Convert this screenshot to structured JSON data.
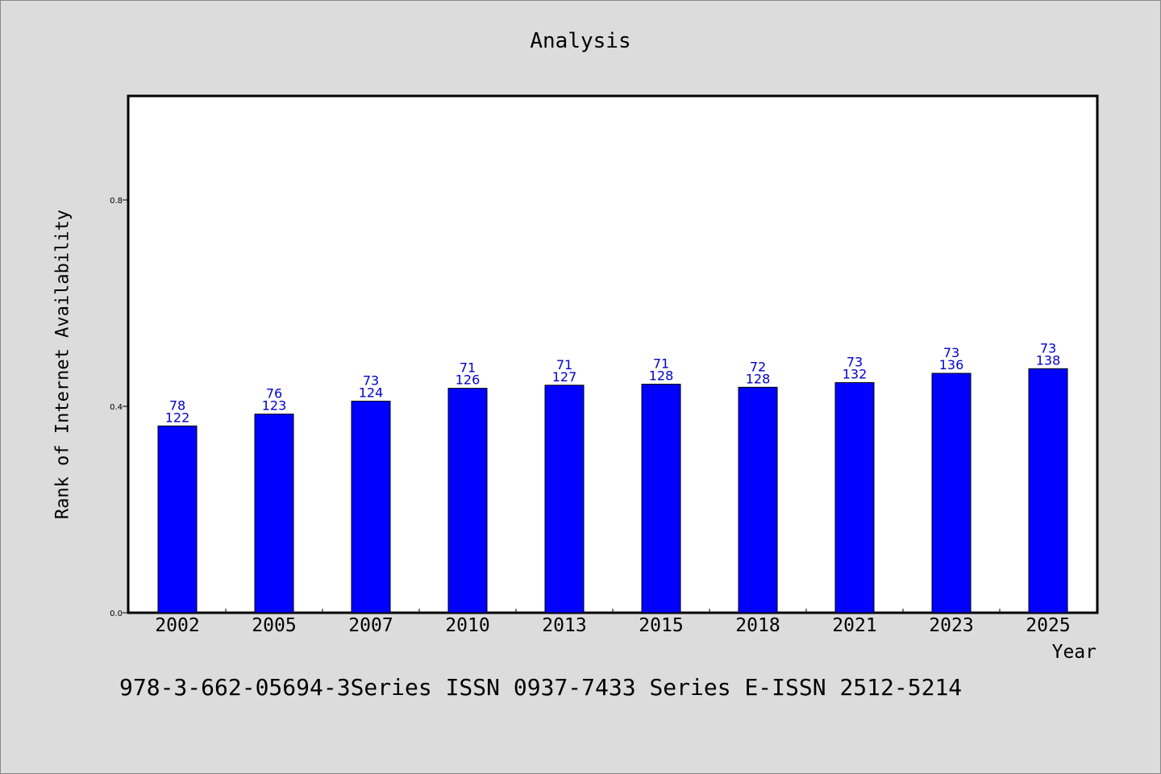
{
  "chart_data": {
    "type": "bar",
    "title": "Analysis",
    "xlabel": "Year",
    "ylabel": "Rank of Internet Availability",
    "ylim": [
      0.0,
      1.0
    ],
    "y_ticks": [
      "0.0",
      "0.4",
      "0.8"
    ],
    "y_tick_values": [
      0.0,
      0.4,
      0.8
    ],
    "categories": [
      "2002",
      "2005",
      "2007",
      "2010",
      "2013",
      "2015",
      "2018",
      "2021",
      "2023",
      "2025"
    ],
    "values": [
      0.362,
      0.385,
      0.41,
      0.435,
      0.441,
      0.443,
      0.437,
      0.446,
      0.464,
      0.473
    ],
    "labels_top": [
      "78",
      "76",
      "73",
      "71",
      "71",
      "71",
      "72",
      "73",
      "73",
      "73"
    ],
    "labels_bottom": [
      "122",
      "123",
      "124",
      "126",
      "127",
      "128",
      "128",
      "132",
      "136",
      "138"
    ],
    "grid": false,
    "colors": {
      "bar": "#0000ff",
      "label": "#0000cc",
      "background": "#dcdcdc",
      "plot": "#ffffff"
    }
  },
  "footer": "978-3-662-05694-3Series ISSN 0937-7433 Series E-ISSN 2512-5214"
}
